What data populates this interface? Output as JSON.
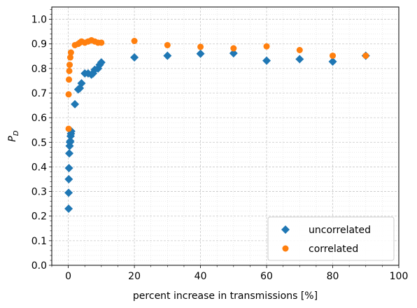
{
  "chart_data": {
    "type": "scatter",
    "xlabel": "percent increase in transmissions [%]",
    "ylabel_main": "P",
    "ylabel_sub": "D",
    "xlim": [
      -5,
      100
    ],
    "ylim": [
      0.0,
      1.05
    ],
    "x_ticks": [
      0,
      20,
      40,
      60,
      80,
      100
    ],
    "y_ticks": [
      0.0,
      0.1,
      0.2,
      0.3,
      0.4,
      0.5,
      0.6,
      0.7,
      0.8,
      0.9,
      1.0
    ],
    "x_tick_labels": [
      "0",
      "20",
      "40",
      "60",
      "80",
      "100"
    ],
    "y_tick_labels": [
      "0.0",
      "0.1",
      "0.2",
      "0.3",
      "0.4",
      "0.5",
      "0.6",
      "0.7",
      "0.8",
      "0.9",
      "1.0"
    ],
    "grid": true,
    "minor_grid": true,
    "legend_position": "bottom-right",
    "series": [
      {
        "name": "uncorrelated",
        "marker": "diamond",
        "color": "#1f77b4",
        "points": [
          [
            0.1,
            0.23
          ],
          [
            0.1,
            0.295
          ],
          [
            0.15,
            0.35
          ],
          [
            0.2,
            0.395
          ],
          [
            0.3,
            0.455
          ],
          [
            0.4,
            0.485
          ],
          [
            0.5,
            0.5
          ],
          [
            0.6,
            0.505
          ],
          [
            0.7,
            0.525
          ],
          [
            0.8,
            0.535
          ],
          [
            0.9,
            0.545
          ],
          [
            2,
            0.655
          ],
          [
            3,
            0.715
          ],
          [
            3.5,
            0.72
          ],
          [
            4,
            0.74
          ],
          [
            5,
            0.78
          ],
          [
            6,
            0.78
          ],
          [
            7,
            0.775
          ],
          [
            7.5,
            0.78
          ],
          [
            8,
            0.795
          ],
          [
            9,
            0.8
          ],
          [
            9.5,
            0.815
          ],
          [
            10,
            0.825
          ],
          [
            20,
            0.845
          ],
          [
            30,
            0.852
          ],
          [
            40,
            0.86
          ],
          [
            50,
            0.862
          ],
          [
            60,
            0.832
          ],
          [
            70,
            0.838
          ],
          [
            80,
            0.828
          ],
          [
            90,
            0.852
          ]
        ]
      },
      {
        "name": "correlated",
        "marker": "circle",
        "color": "#ff7f0e",
        "points": [
          [
            0.1,
            0.555
          ],
          [
            0.1,
            0.695
          ],
          [
            0.2,
            0.755
          ],
          [
            0.3,
            0.79
          ],
          [
            0.4,
            0.815
          ],
          [
            0.6,
            0.845
          ],
          [
            0.8,
            0.865
          ],
          [
            2,
            0.895
          ],
          [
            3,
            0.9
          ],
          [
            3.5,
            0.905
          ],
          [
            4,
            0.91
          ],
          [
            5,
            0.905
          ],
          [
            6,
            0.91
          ],
          [
            7,
            0.915
          ],
          [
            8,
            0.91
          ],
          [
            9,
            0.905
          ],
          [
            10,
            0.905
          ],
          [
            20,
            0.912
          ],
          [
            30,
            0.895
          ],
          [
            40,
            0.888
          ],
          [
            50,
            0.882
          ],
          [
            60,
            0.89
          ],
          [
            70,
            0.875
          ],
          [
            80,
            0.852
          ],
          [
            90,
            0.852
          ]
        ]
      }
    ]
  }
}
